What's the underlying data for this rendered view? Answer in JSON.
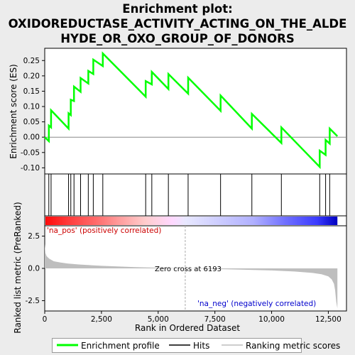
{
  "title_line1": "Enrichment plot:",
  "title_line2": "OXIDOREDUCTASE_ACTIVITY_ACTING_ON_THE_ALDE",
  "title_line3": "HYDE_OR_OXO_GROUP_OF_DONORS",
  "colors": {
    "es_line": "#00ff00",
    "hits": "#000000",
    "metric_fill": "#bebebe",
    "pos_label": "#cc0000",
    "neg_label": "#0000cc",
    "zero_line": "#aaaaaa"
  },
  "chart_data": [
    {
      "type": "line",
      "panel": "enrichment",
      "ylabel": "Enrichment score (ES)",
      "ylim": [
        -0.12,
        0.29
      ],
      "yticks": [
        "0.25",
        "0.20",
        "0.15",
        "0.10",
        "0.05",
        "0.00",
        "-0.05",
        "-0.10"
      ],
      "ytick_values": [
        0.25,
        0.2,
        0.15,
        0.1,
        0.05,
        0.0,
        -0.05,
        -0.1
      ],
      "series": [
        {
          "name": "Enrichment profile",
          "x": [
            0,
            180,
            180,
            280,
            280,
            1050,
            1050,
            1150,
            1150,
            1290,
            1290,
            1580,
            1580,
            1920,
            1920,
            2140,
            2140,
            2560,
            2560,
            4450,
            4450,
            4720,
            4720,
            5450,
            5450,
            6320,
            6320,
            7750,
            7750,
            9130,
            9130,
            10430,
            10430,
            12120,
            12120,
            12380,
            12380,
            12560,
            12560,
            12900
          ],
          "y": [
            0.0,
            -0.013,
            0.038,
            0.032,
            0.088,
            0.028,
            0.078,
            0.072,
            0.122,
            0.118,
            0.165,
            0.148,
            0.193,
            0.175,
            0.216,
            0.206,
            0.253,
            0.232,
            0.273,
            0.132,
            0.183,
            0.172,
            0.213,
            0.157,
            0.206,
            0.142,
            0.194,
            0.086,
            0.136,
            0.028,
            0.076,
            -0.019,
            0.032,
            -0.097,
            -0.044,
            -0.058,
            -0.009,
            -0.021,
            0.028,
            0.003
          ]
        }
      ]
    },
    {
      "type": "hits",
      "panel": "hits",
      "name": "Hits",
      "x": [
        180,
        280,
        1050,
        1150,
        1290,
        1580,
        1920,
        2140,
        2560,
        4450,
        4720,
        5450,
        6320,
        7750,
        9130,
        10430,
        12120,
        12380,
        12560
      ]
    },
    {
      "type": "heatmap",
      "panel": "ranking",
      "stops": [
        {
          "x": 0,
          "color": "#ff0a0a"
        },
        {
          "x": 1000,
          "color": "#ff3b3b"
        },
        {
          "x": 2200,
          "color": "#ff6a6a"
        },
        {
          "x": 3200,
          "color": "#ff9a9a"
        },
        {
          "x": 4400,
          "color": "#ffcccc"
        },
        {
          "x": 5600,
          "color": "#ffd8ff"
        },
        {
          "x": 6193,
          "color": "#e8e8ff"
        },
        {
          "x": 7500,
          "color": "#d0d0ff"
        },
        {
          "x": 9200,
          "color": "#b0b0ff"
        },
        {
          "x": 10600,
          "color": "#7070ff"
        },
        {
          "x": 12000,
          "color": "#3b3bff"
        },
        {
          "x": 12900,
          "color": "#0000c0"
        }
      ]
    },
    {
      "type": "area",
      "panel": "metric",
      "name": "Ranking metric scores",
      "xlabel": "Rank in Ordered Dataset",
      "ylabel": "Ranked list metric (PreRanked)",
      "ylim": [
        -3.3,
        3.3
      ],
      "xlim": [
        0,
        13300
      ],
      "xticks": [
        "0",
        "2,500",
        "5,000",
        "7,500",
        "10,000",
        "12,500"
      ],
      "xtick_values": [
        0,
        2500,
        5000,
        7500,
        10000,
        12500
      ],
      "yticks": [
        "2.5",
        "0.0",
        "-2.5"
      ],
      "ytick_values": [
        2.5,
        0.0,
        -2.5
      ],
      "x": [
        0,
        30,
        80,
        200,
        400,
        700,
        1000,
        1500,
        2500,
        4000,
        6193,
        8000,
        10000,
        11000,
        11800,
        12200,
        12500,
        12650,
        12750,
        12800,
        12850,
        12900
      ],
      "y": [
        1.9,
        1.2,
        0.95,
        0.75,
        0.55,
        0.45,
        0.38,
        0.3,
        0.2,
        0.1,
        0.0,
        -0.07,
        -0.16,
        -0.24,
        -0.35,
        -0.45,
        -0.62,
        -0.85,
        -1.2,
        -1.7,
        -2.6,
        -3.1
      ],
      "annotations": {
        "zero_cross": "Zero cross at 6193",
        "zero_cross_x": 6193,
        "pos_label": "'na_pos' (positively correlated)",
        "neg_label": "'na_neg' (negatively correlated)"
      }
    }
  ],
  "legend": {
    "items": [
      "Enrichment profile",
      "Hits",
      "Ranking metric scores"
    ]
  }
}
